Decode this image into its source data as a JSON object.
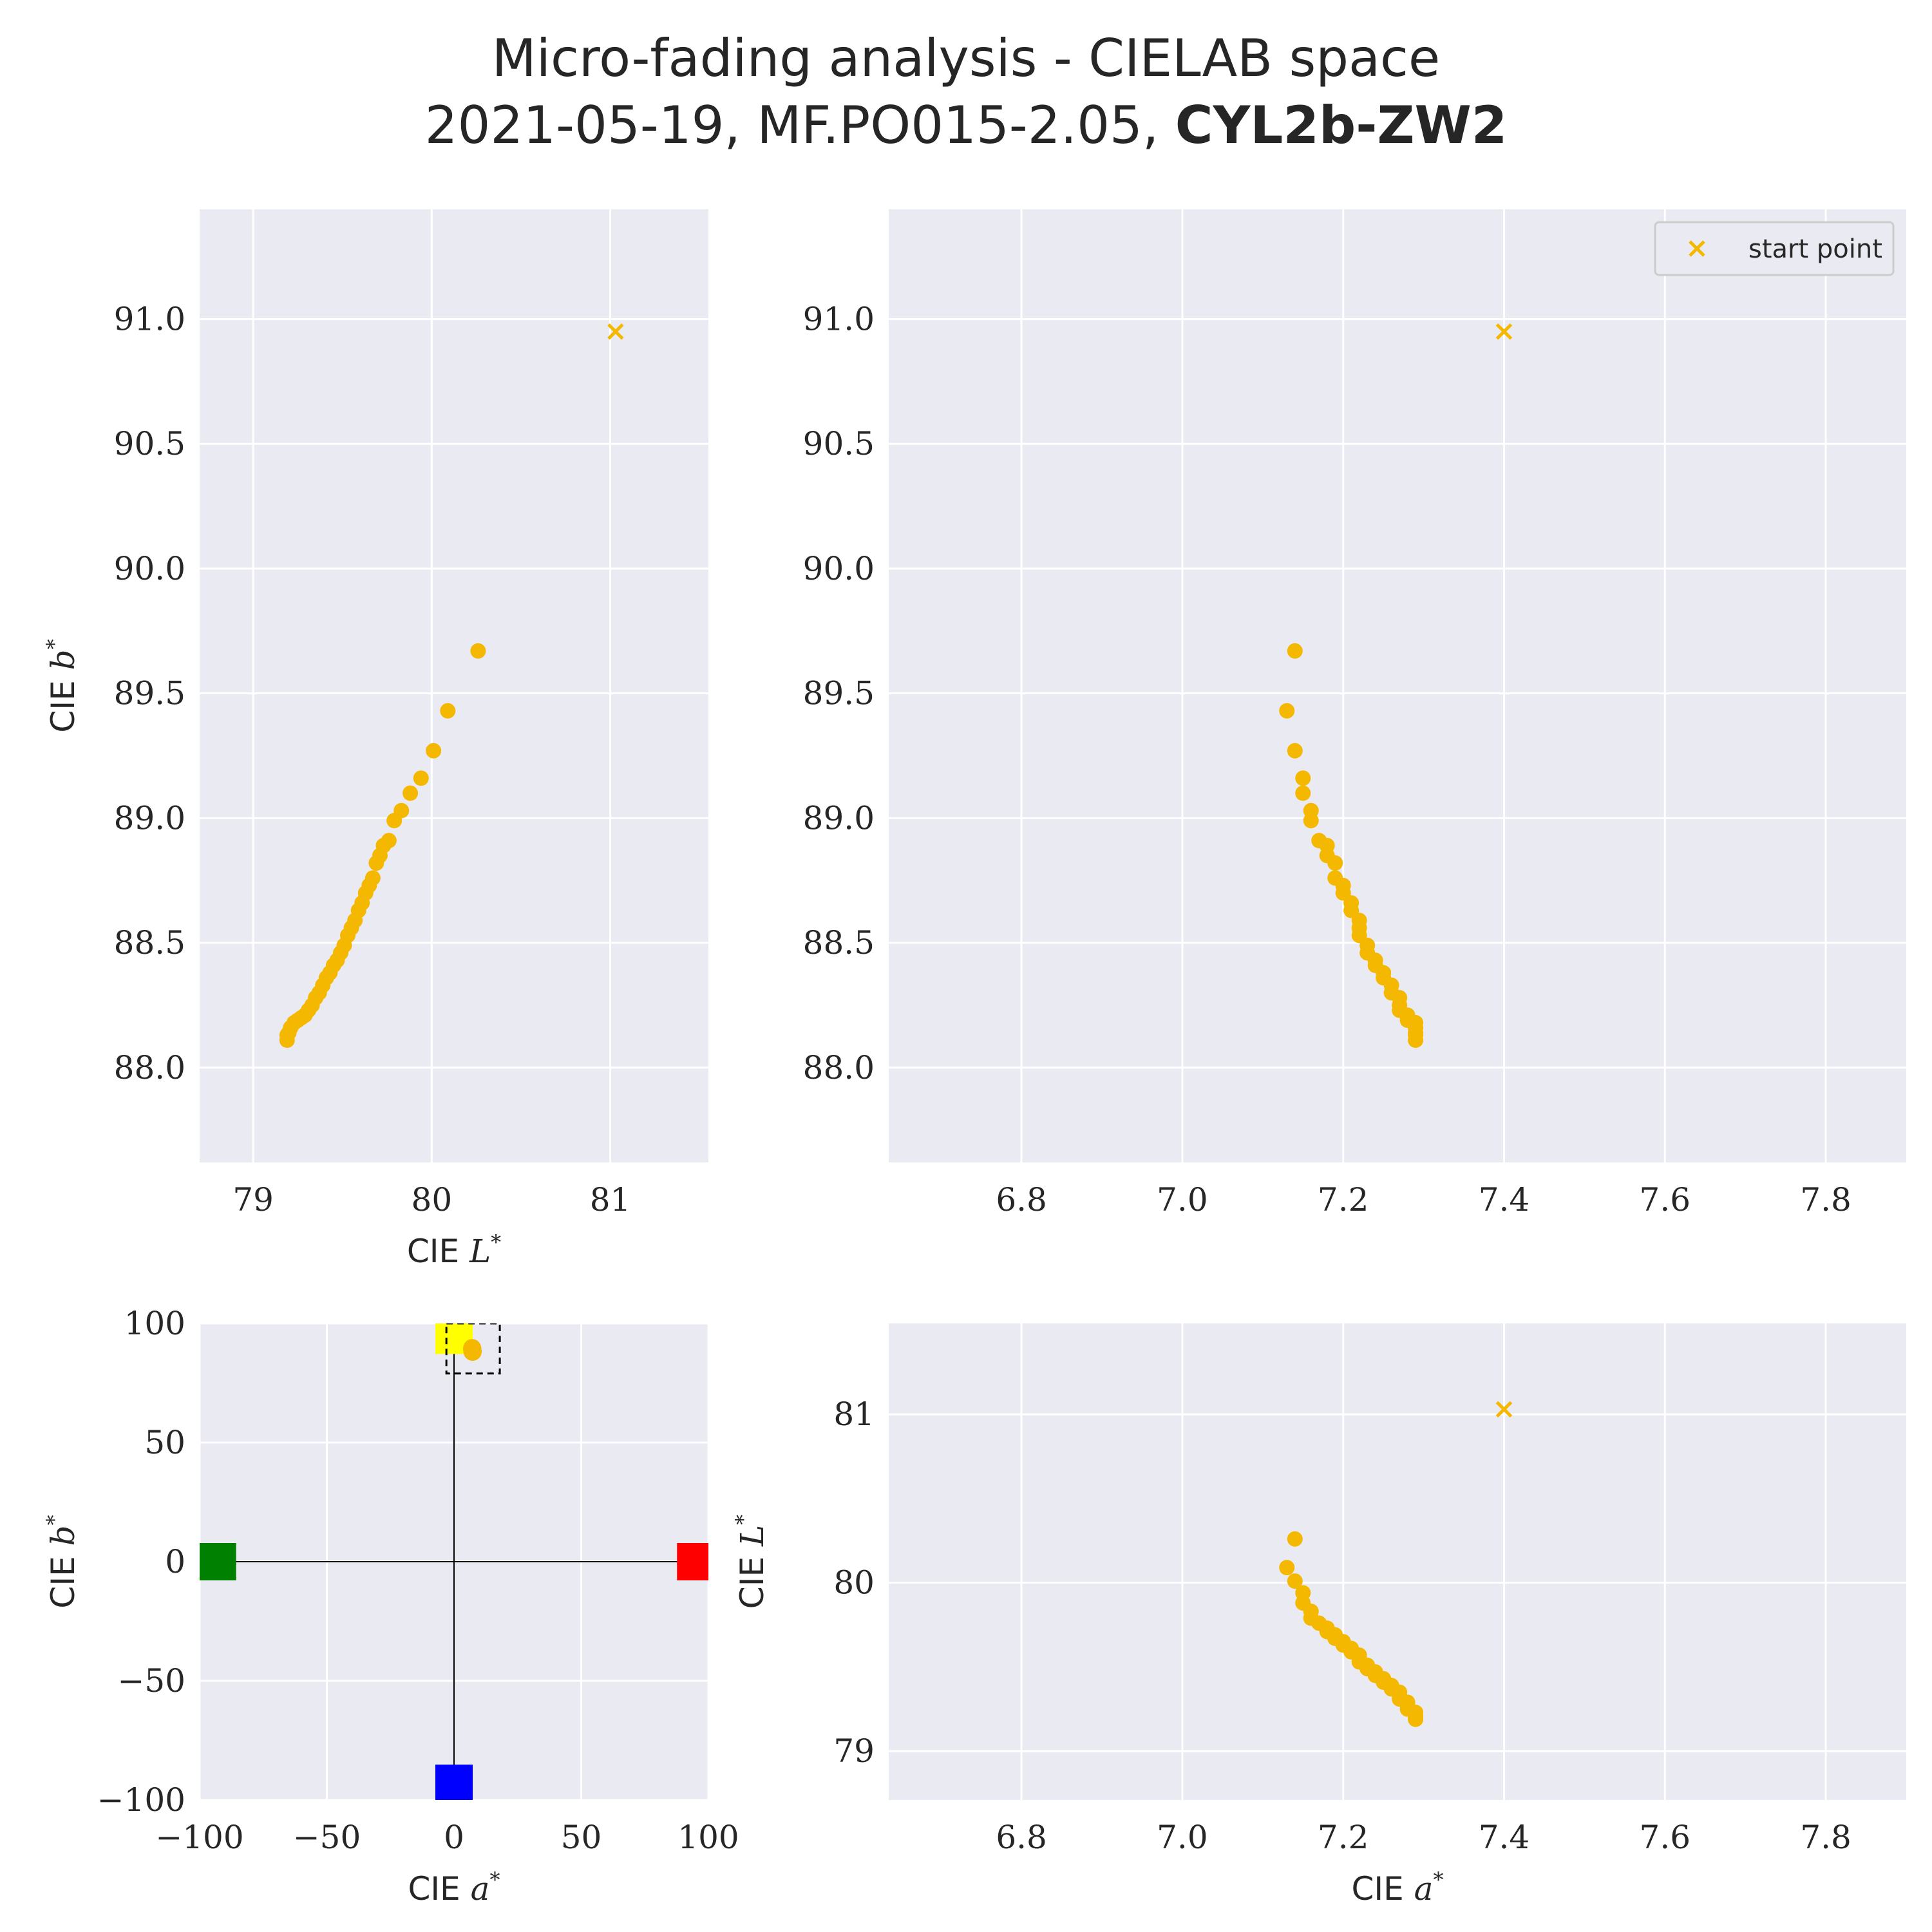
{
  "figure": {
    "title_line1": "Micro-fading analysis - CIELAB space",
    "title_line2_prefix": "2021-05-19, MF.PO015-2.05, ",
    "title_line2_bold": "CYL2b-ZW2"
  },
  "colors": {
    "panel_bg": "#EAEAF2",
    "grid": "#FFFFFF",
    "data": "#F5B800",
    "text": "#262626"
  },
  "legend": {
    "label": "start point",
    "placement": "top-right"
  },
  "chart_data": [
    {
      "id": "Lb",
      "type": "scatter",
      "xlabel": "CIE L*",
      "ylabel": "CIE b*",
      "xlim": [
        78.7,
        81.55
      ],
      "ylim": [
        87.62,
        91.44
      ],
      "xticks": [
        79,
        80,
        81
      ],
      "yticks": [
        88.0,
        88.5,
        89.0,
        89.5,
        90.0,
        90.5,
        91.0
      ],
      "start_point": {
        "x": 81.03,
        "y": 90.95
      },
      "series_x_source": "L",
      "series_y_source": "b",
      "grid": true
    },
    {
      "id": "ab_zoom",
      "type": "scatter",
      "xlabel": "",
      "ylabel": "",
      "xlim": [
        6.635,
        7.9
      ],
      "ylim": [
        87.62,
        91.44
      ],
      "xticks": [
        6.8,
        7.0,
        7.2,
        7.4,
        7.6,
        7.8
      ],
      "yticks": [
        88.0,
        88.5,
        89.0,
        89.5,
        90.0,
        90.5,
        91.0
      ],
      "start_point": {
        "x": 7.4,
        "y": 90.95
      },
      "series_x_source": "a",
      "series_y_source": "b",
      "legend": true,
      "grid": true
    },
    {
      "id": "ab_full",
      "type": "scatter",
      "xlabel": "CIE a*",
      "ylabel": "CIE b*",
      "xlim": [
        -100,
        100
      ],
      "ylim": [
        -100,
        100
      ],
      "xticks": [
        -100,
        -50,
        0,
        50,
        100
      ],
      "yticks": [
        -100,
        -50,
        0,
        50,
        100
      ],
      "color_squares": [
        {
          "x": 0,
          "y": 95,
          "color": "#FFFF00"
        },
        {
          "x": 95,
          "y": 0,
          "color": "#FF0000"
        },
        {
          "x": -93,
          "y": 0,
          "color": "#008000"
        },
        {
          "x": 0,
          "y": -93,
          "color": "#0000FF"
        }
      ],
      "zoom_box": {
        "x": [
          -3,
          18
        ],
        "y": [
          79,
          100
        ]
      },
      "grid": true
    },
    {
      "id": "aL",
      "type": "scatter",
      "xlabel": "CIE a*",
      "ylabel": "CIE L*",
      "xlim": [
        6.635,
        7.9
      ],
      "ylim": [
        78.71,
        81.54
      ],
      "xticks": [
        6.8,
        7.0,
        7.2,
        7.4,
        7.6,
        7.8
      ],
      "yticks": [
        79,
        80,
        81
      ],
      "start_point": {
        "x": 7.4,
        "y": 81.03
      },
      "series_x_source": "a",
      "series_y_source": "L",
      "grid": true
    }
  ],
  "measurements": {
    "L": [
      80.26,
      80.09,
      80.01,
      79.94,
      79.88,
      79.83,
      79.79,
      79.76,
      79.73,
      79.71,
      79.69,
      79.67,
      79.65,
      79.63,
      79.61,
      79.59,
      79.57,
      79.55,
      79.53,
      79.51,
      79.49,
      79.47,
      79.45,
      79.43,
      79.41,
      79.39,
      79.37,
      79.35,
      79.33,
      79.31,
      79.29,
      79.27,
      79.25,
      79.23,
      79.21,
      79.2,
      79.19,
      79.19
    ],
    "a": [
      7.14,
      7.13,
      7.14,
      7.15,
      7.15,
      7.16,
      7.16,
      7.17,
      7.18,
      7.18,
      7.19,
      7.19,
      7.2,
      7.2,
      7.21,
      7.21,
      7.22,
      7.22,
      7.22,
      7.23,
      7.23,
      7.24,
      7.24,
      7.25,
      7.25,
      7.26,
      7.26,
      7.27,
      7.27,
      7.27,
      7.28,
      7.28,
      7.28,
      7.29,
      7.29,
      7.29,
      7.29,
      7.29
    ],
    "b": [
      89.67,
      89.43,
      89.27,
      89.16,
      89.1,
      89.03,
      88.99,
      88.91,
      88.89,
      88.85,
      88.82,
      88.76,
      88.73,
      88.7,
      88.66,
      88.63,
      88.59,
      88.56,
      88.53,
      88.49,
      88.46,
      88.43,
      88.41,
      88.38,
      88.36,
      88.33,
      88.3,
      88.28,
      88.25,
      88.23,
      88.21,
      88.2,
      88.19,
      88.18,
      88.16,
      88.14,
      88.13,
      88.11
    ]
  }
}
